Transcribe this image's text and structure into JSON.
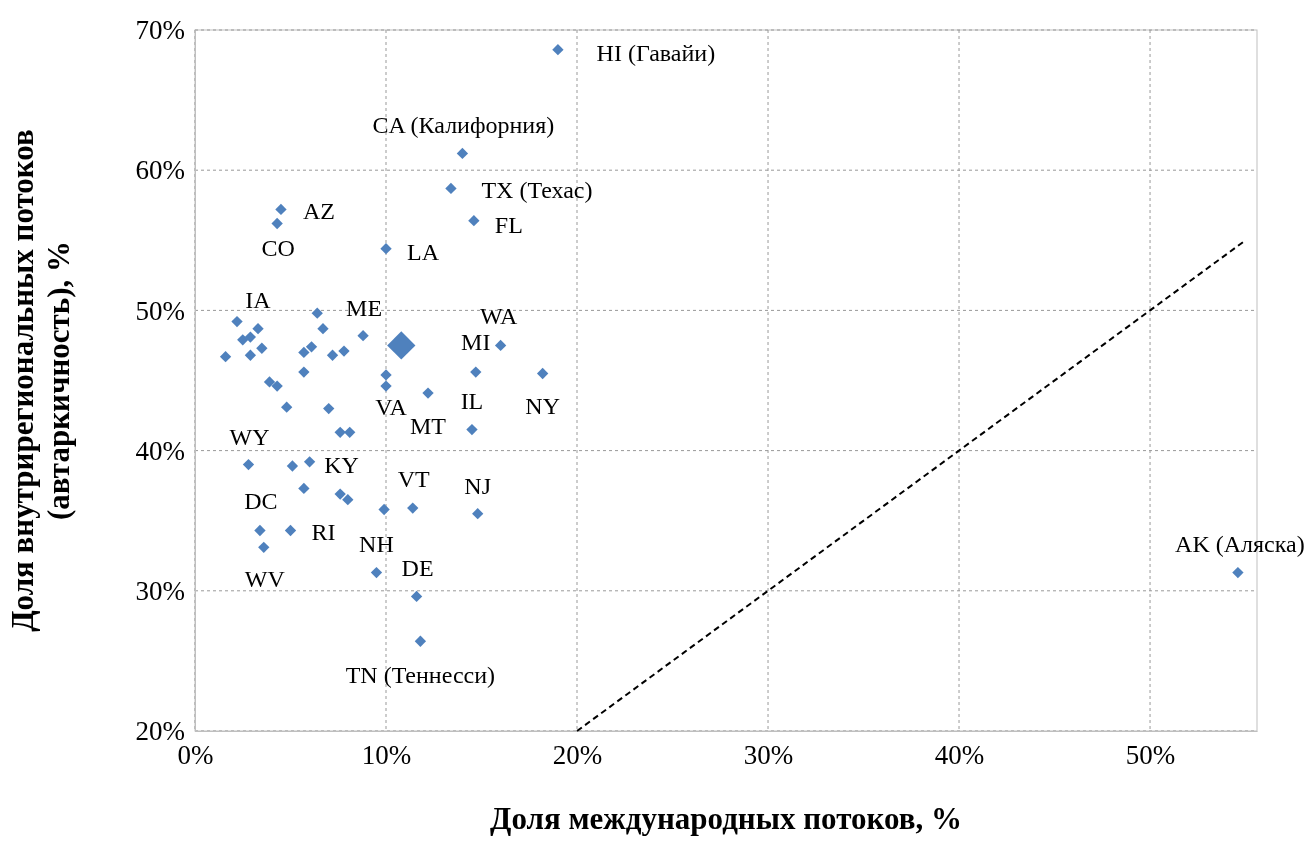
{
  "chart_data": {
    "type": "scatter",
    "xlabel": "Доля международных потоков, %",
    "ylabel": "Доля внутрирегиональных потоков (автаркичность), %",
    "xlim": [
      0,
      55.6
    ],
    "ylim": [
      20,
      70
    ],
    "xticks": [
      {
        "value": 0,
        "label": "0%"
      },
      {
        "value": 10,
        "label": "10%"
      },
      {
        "value": 20,
        "label": "20%"
      },
      {
        "value": 30,
        "label": "30%"
      },
      {
        "value": 40,
        "label": "40%"
      },
      {
        "value": 50,
        "label": "50%"
      }
    ],
    "yticks": [
      {
        "value": 20,
        "label": "20%"
      },
      {
        "value": 30,
        "label": "30%"
      },
      {
        "value": 40,
        "label": "40%"
      },
      {
        "value": 50,
        "label": "50%"
      },
      {
        "value": 60,
        "label": "60%"
      },
      {
        "value": 70,
        "label": "70%"
      }
    ],
    "grid": true,
    "marker": "diamond",
    "series": [
      {
        "color": "#4f81bd",
        "x": [
          19.0,
          14.0,
          13.4,
          14.6,
          4.5,
          4.3,
          10.0,
          2.2,
          3.3,
          6.4,
          6.7,
          8.8,
          2.5,
          2.9,
          3.5,
          1.6,
          2.9,
          5.7,
          6.1,
          7.2,
          7.8,
          5.7,
          10.0,
          10.0,
          12.2,
          14.7,
          18.2,
          16.0,
          3.9,
          4.3,
          4.8,
          7.0,
          7.6,
          8.1,
          14.5,
          2.8,
          5.1,
          6.0,
          5.7,
          7.6,
          8.0,
          9.9,
          11.4,
          14.8,
          3.4,
          5.0,
          3.6,
          9.5,
          11.6,
          11.8,
          54.6
        ],
        "values": [
          68.6,
          61.2,
          58.7,
          56.4,
          57.2,
          56.2,
          54.4,
          49.2,
          48.7,
          49.8,
          48.7,
          48.2,
          47.9,
          48.1,
          47.3,
          46.7,
          46.8,
          47.0,
          47.4,
          46.8,
          47.1,
          45.6,
          45.4,
          44.6,
          44.1,
          45.6,
          45.5,
          47.5,
          44.9,
          44.6,
          43.1,
          43.0,
          41.3,
          41.3,
          41.5,
          39.0,
          38.9,
          39.2,
          37.3,
          36.9,
          36.5,
          35.8,
          35.9,
          35.5,
          34.3,
          34.3,
          33.1,
          31.3,
          29.6,
          26.4,
          31.3
        ]
      },
      {
        "color": "#4f81bd",
        "x": [
          10.8
        ],
        "values": [
          47.5
        ]
      },
      {
        "type": "line",
        "color": "#000000",
        "line_style": "dashed",
        "marker": "none",
        "x": [
          20,
          55
        ],
        "values": [
          20,
          55
        ]
      }
    ],
    "annotations": [
      {
        "text": "HI (Гавайи)",
        "x": 19.0,
        "y": 68.6
      },
      {
        "text": "CA (Калифорния)",
        "x": 14.0,
        "y": 61.2
      },
      {
        "text": "TX (Техас)",
        "x": 13.4,
        "y": 58.7
      },
      {
        "text": "FL",
        "x": 14.6,
        "y": 56.4
      },
      {
        "text": "AZ",
        "x": 4.5,
        "y": 57.2
      },
      {
        "text": "CO",
        "x": 4.3,
        "y": 56.2
      },
      {
        "text": "LA",
        "x": 10.0,
        "y": 54.4
      },
      {
        "text": "IA",
        "x": 3.3,
        "y": 48.7
      },
      {
        "text": "ME",
        "x": 8.8,
        "y": 48.2
      },
      {
        "text": "WA",
        "x": 16.0,
        "y": 47.5
      },
      {
        "text": "MI",
        "x": 14.7,
        "y": 45.6
      },
      {
        "text": "VA",
        "x": 10.0,
        "y": 44.6
      },
      {
        "text": "IL",
        "x": 14.5,
        "y": 41.5
      },
      {
        "text": "NY",
        "x": 18.2,
        "y": 45.5
      },
      {
        "text": "MT",
        "x": 12.2,
        "y": 44.1
      },
      {
        "text": "WY",
        "x": 2.8,
        "y": 39.0
      },
      {
        "text": "KY",
        "x": 6.0,
        "y": 39.2
      },
      {
        "text": "VT",
        "x": 11.4,
        "y": 35.9
      },
      {
        "text": "NJ",
        "x": 14.8,
        "y": 35.5
      },
      {
        "text": "DC",
        "x": 3.4,
        "y": 34.3
      },
      {
        "text": "RI",
        "x": 5.0,
        "y": 34.3
      },
      {
        "text": "NH",
        "x": 9.5,
        "y": 31.3
      },
      {
        "text": "DE",
        "x": 11.6,
        "y": 29.6
      },
      {
        "text": "WV",
        "x": 3.6,
        "y": 33.1
      },
      {
        "text": "TN (Теннесси)",
        "x": 11.8,
        "y": 26.4
      },
      {
        "text": "AK (Аляска)",
        "x": 54.6,
        "y": 31.3
      }
    ]
  }
}
